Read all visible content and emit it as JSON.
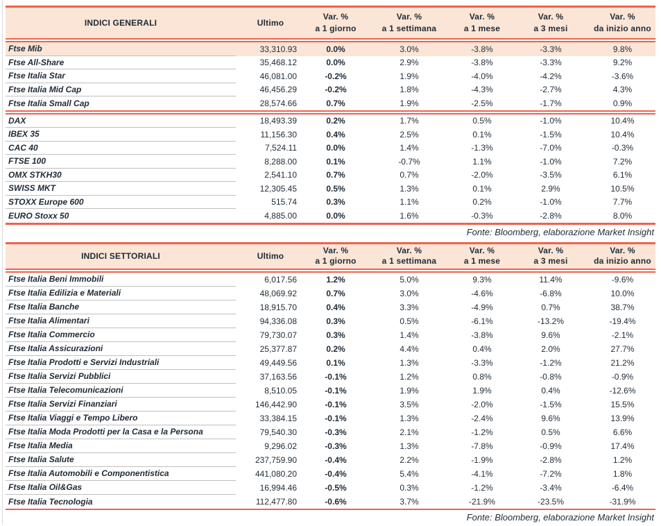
{
  "colors": {
    "accent_red": "#F2604A",
    "header_bg": "#FBE5D6",
    "highlight_bg": "#FBE5D6",
    "text": "#1E2A36",
    "divider": "#BFBFBF"
  },
  "col_headers": {
    "ultimo": "Ultimo",
    "var": "Var. %",
    "periods": [
      "a 1 giorno",
      "a 1 settimana",
      "a 1 mese",
      "a 3 mesi",
      "da inizio anno"
    ]
  },
  "tables": [
    {
      "title": "INDICI GENERALI",
      "source_note": "Fonte: Bloomberg, elaborazione Market Insight",
      "groups": [
        {
          "rows": [
            {
              "name": "Ftse Mib",
              "ultimo": "33,310.93",
              "vars": [
                "0.0%",
                "3.0%",
                "-3.8%",
                "-3.3%",
                "9.8%"
              ],
              "highlight": true
            },
            {
              "name": "Ftse All-Share",
              "ultimo": "35,468.12",
              "vars": [
                "0.0%",
                "2.9%",
                "-3.8%",
                "-3.3%",
                "9.2%"
              ]
            },
            {
              "name": "Ftse Italia Star",
              "ultimo": "46,081.00",
              "vars": [
                "-0.2%",
                "1.9%",
                "-4.0%",
                "-4.2%",
                "-3.6%"
              ]
            },
            {
              "name": "Ftse Italia Mid Cap",
              "ultimo": "46,456.29",
              "vars": [
                "-0.2%",
                "1.8%",
                "-4.3%",
                "-2.7%",
                "4.3%"
              ]
            },
            {
              "name": "Ftse Italia Small Cap",
              "ultimo": "28,574.66",
              "vars": [
                "0.7%",
                "1.9%",
                "-2.5%",
                "-1.7%",
                "0.9%"
              ]
            }
          ]
        },
        {
          "rows": [
            {
              "name": "DAX",
              "ultimo": "18,493.39",
              "vars": [
                "0.2%",
                "1.7%",
                "0.5%",
                "-1.0%",
                "10.4%"
              ]
            },
            {
              "name": "IBEX 35",
              "ultimo": "11,156.30",
              "vars": [
                "0.4%",
                "2.5%",
                "0.1%",
                "-1.5%",
                "10.4%"
              ]
            },
            {
              "name": "CAC 40",
              "ultimo": "7,524.11",
              "vars": [
                "0.0%",
                "1.4%",
                "-1.3%",
                "-7.0%",
                "-0.3%"
              ]
            },
            {
              "name": "FTSE 100",
              "ultimo": "8,288.00",
              "vars": [
                "0.1%",
                "-0.7%",
                "1.1%",
                "-1.0%",
                "7.2%"
              ]
            },
            {
              "name": "OMX STKH30",
              "ultimo": "2,541.10",
              "vars": [
                "0.7%",
                "0.7%",
                "-2.0%",
                "-3.5%",
                "6.1%"
              ]
            },
            {
              "name": "SWISS MKT",
              "ultimo": "12,305.45",
              "vars": [
                "0.5%",
                "1.3%",
                "0.1%",
                "2.9%",
                "10.5%"
              ]
            },
            {
              "name": "STOXX Europe 600",
              "ultimo": "515.74",
              "vars": [
                "0.3%",
                "1.1%",
                "0.2%",
                "-1.0%",
                "7.7%"
              ]
            },
            {
              "name": "EURO Stoxx 50",
              "ultimo": "4,885.00",
              "vars": [
                "0.0%",
                "1.6%",
                "-0.3%",
                "-2.8%",
                "8.0%"
              ]
            }
          ]
        }
      ]
    },
    {
      "title": "INDICI SETTORIALI",
      "source_note": "Fonte: Bloomberg, elaborazione Market Insight",
      "groups": [
        {
          "rows": [
            {
              "name": "Ftse Italia Beni Immobili",
              "ultimo": "6,017.56",
              "vars": [
                "1.2%",
                "5.0%",
                "9.3%",
                "11.4%",
                "-9.6%"
              ]
            },
            {
              "name": "Ftse Italia Edilizia e Materiali",
              "ultimo": "48,069.92",
              "vars": [
                "0.7%",
                "3.0%",
                "-4.6%",
                "-6.8%",
                "10.0%"
              ]
            },
            {
              "name": "Ftse Italia Banche",
              "ultimo": "18,915.70",
              "vars": [
                "0.4%",
                "3.3%",
                "-4.9%",
                "0.7%",
                "38.7%"
              ]
            },
            {
              "name": "Ftse Italia Alimentari",
              "ultimo": "94,336.08",
              "vars": [
                "0.3%",
                "0.5%",
                "-6.1%",
                "-13.2%",
                "-19.4%"
              ]
            },
            {
              "name": "Ftse Italia Commercio",
              "ultimo": "79,730.07",
              "vars": [
                "0.3%",
                "1.4%",
                "-3.8%",
                "9.6%",
                "-2.1%"
              ]
            },
            {
              "name": "Ftse Italia Assicurazioni",
              "ultimo": "25,377.87",
              "vars": [
                "0.2%",
                "4.4%",
                "0.4%",
                "2.0%",
                "27.7%"
              ]
            },
            {
              "name": "Ftse Italia Prodotti e Servizi Industriali",
              "ultimo": "49,449.56",
              "vars": [
                "0.1%",
                "1.3%",
                "-3.3%",
                "-1.2%",
                "21.2%"
              ]
            },
            {
              "name": "Ftse Italia Servizi Pubblici",
              "ultimo": "37,163.56",
              "vars": [
                "-0.1%",
                "1.2%",
                "0.8%",
                "-0.8%",
                "-0.9%"
              ]
            },
            {
              "name": "Ftse Italia Telecomunicazioni",
              "ultimo": "8,510.05",
              "vars": [
                "-0.1%",
                "1.9%",
                "1.9%",
                "0.4%",
                "-12.6%"
              ]
            },
            {
              "name": "Ftse Italia Servizi Finanziari",
              "ultimo": "146,442.90",
              "vars": [
                "-0.1%",
                "3.5%",
                "-2.0%",
                "-1.5%",
                "15.5%"
              ]
            },
            {
              "name": "Ftse Italia Viaggi e Tempo Libero",
              "ultimo": "33,384.15",
              "vars": [
                "-0.1%",
                "1.3%",
                "-2.4%",
                "9.6%",
                "13.9%"
              ]
            },
            {
              "name": "Ftse Italia Moda Prodotti per la Casa e la Persona",
              "ultimo": "79,540.30",
              "vars": [
                "-0.3%",
                "2.1%",
                "-1.2%",
                "0.5%",
                "6.6%"
              ]
            },
            {
              "name": "Ftse Italia Media",
              "ultimo": "9,296.02",
              "vars": [
                "-0.3%",
                "1.3%",
                "-7.8%",
                "-0.9%",
                "17.4%"
              ]
            },
            {
              "name": "Ftse Italia Salute",
              "ultimo": "237,759.90",
              "vars": [
                "-0.4%",
                "2.2%",
                "-1.9%",
                "-2.8%",
                "1.2%"
              ]
            },
            {
              "name": "Ftse Italia Automobili e Componentistica",
              "ultimo": "441,080.20",
              "vars": [
                "-0.4%",
                "5.4%",
                "-4.1%",
                "-7.2%",
                "1.8%"
              ]
            },
            {
              "name": "Ftse Italia Oil&Gas",
              "ultimo": "16,994.46",
              "vars": [
                "-0.5%",
                "0.3%",
                "-1.2%",
                "-3.4%",
                "-6.4%"
              ]
            },
            {
              "name": "Ftse Italia Tecnologia",
              "ultimo": "112,477.80",
              "vars": [
                "-0.6%",
                "3.7%",
                "-21.9%",
                "-23.5%",
                "-31.9%"
              ]
            }
          ]
        }
      ]
    }
  ]
}
